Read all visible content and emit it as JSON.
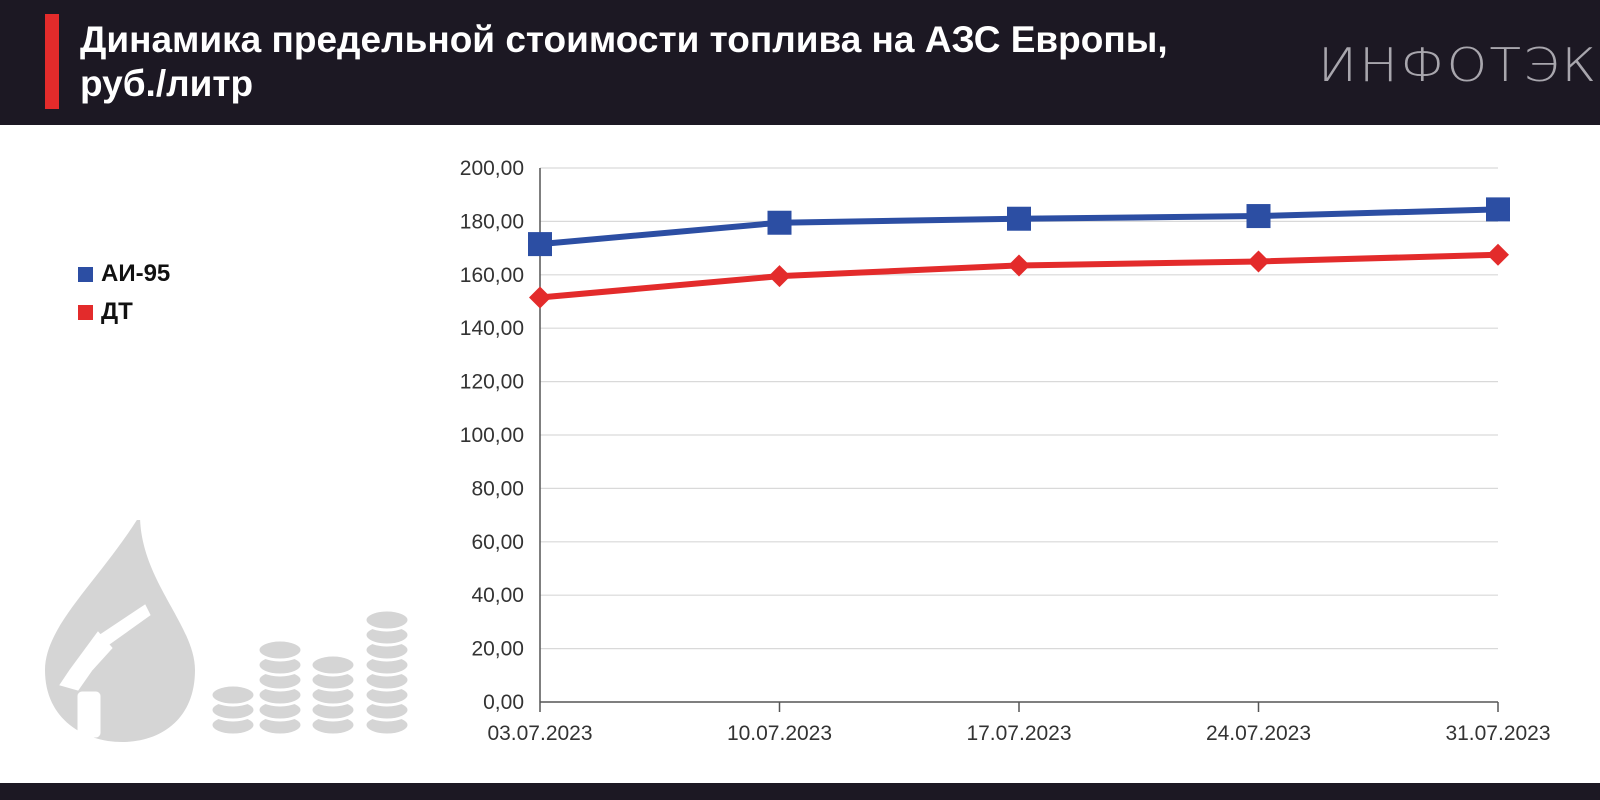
{
  "header": {
    "title": "Динамика предельной стоимости топлива на АЗС Европы, руб./литр",
    "brand": "ИНФОТЭК"
  },
  "colors": {
    "header_bg": "#1c1823",
    "accent": "#e32b2b",
    "ai95": "#2c4ea3",
    "dt": "#e32b2b",
    "grid": "#d9d9d9",
    "icon": "#d5d5d5"
  },
  "illustration": {
    "icons": [
      "fuel-drop-icon",
      "fuel-nozzle-icon",
      "coin-stacks-icon"
    ]
  },
  "chart_data": {
    "type": "line",
    "title": "Динамика предельной стоимости топлива на АЗС Европы, руб./литр",
    "categories": [
      "03.07.2023",
      "10.07.2023",
      "17.07.2023",
      "24.07.2023",
      "31.07.2023"
    ],
    "series": [
      {
        "name": "АИ-95",
        "color": "#2c4ea3",
        "marker": "square",
        "values": [
          171.5,
          179.5,
          181.0,
          182.0,
          184.5
        ]
      },
      {
        "name": "ДТ",
        "color": "#e32b2b",
        "marker": "diamond",
        "values": [
          151.5,
          159.5,
          163.5,
          165.0,
          167.5
        ]
      }
    ],
    "ylim": [
      0,
      200
    ],
    "yticks": [
      "0,00",
      "20,00",
      "40,00",
      "60,00",
      "80,00",
      "100,00",
      "120,00",
      "140,00",
      "160,00",
      "180,00",
      "200,00"
    ],
    "grid": true,
    "legend": "left"
  }
}
